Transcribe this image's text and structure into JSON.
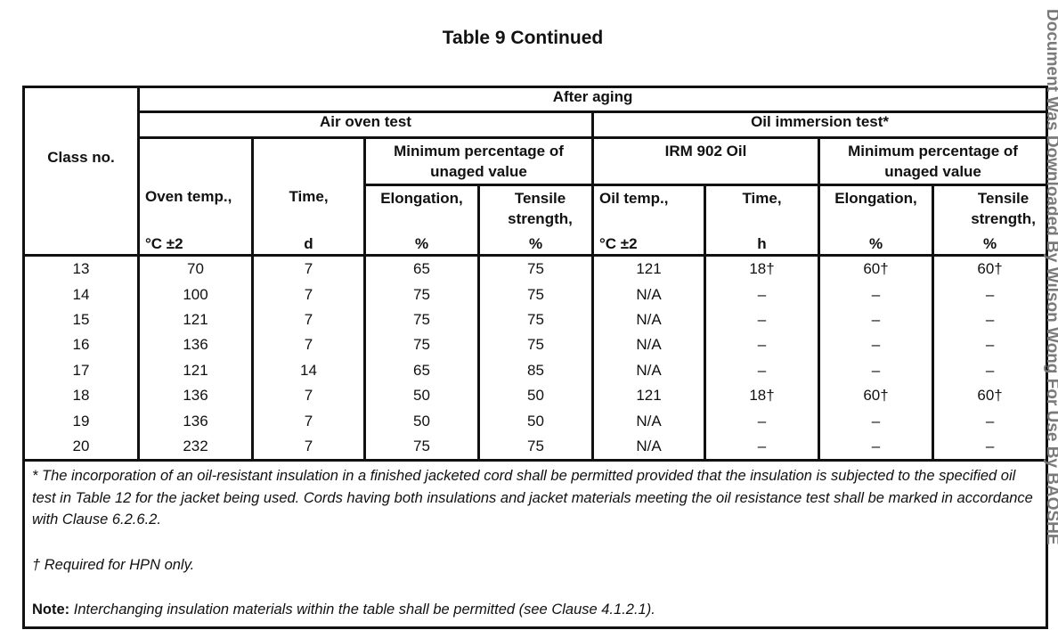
{
  "title": "Table 9 Continued",
  "watermark": "Document Was Downloaded By Wilson Wong  For Use By BAOSHE",
  "header": {
    "class_no": "Class no.",
    "after_aging": "After aging",
    "air_oven_test": "Air oven test",
    "oil_immersion_test": "Oil immersion test*",
    "min_pct": "Minimum percentage of unaged value",
    "irm": "IRM 902 Oil",
    "oven_temp": "Oven temp.,",
    "time": "Time,",
    "elongation": "Elongation,",
    "tensile": "Tensile strength,",
    "oil_temp": "Oil temp.,",
    "unit_temp": "°C ±2",
    "unit_d": "d",
    "unit_pct": "%",
    "unit_h": "h"
  },
  "rows": [
    [
      "13",
      "70",
      "7",
      "65",
      "75",
      "121",
      "18†",
      "60†",
      "60†"
    ],
    [
      "14",
      "100",
      "7",
      "75",
      "75",
      "N/A",
      "–",
      "–",
      "–"
    ],
    [
      "15",
      "121",
      "7",
      "75",
      "75",
      "N/A",
      "–",
      "–",
      "–"
    ],
    [
      "16",
      "136",
      "7",
      "75",
      "75",
      "N/A",
      "–",
      "–",
      "–"
    ],
    [
      "17",
      "121",
      "14",
      "65",
      "85",
      "N/A",
      "–",
      "–",
      "–"
    ],
    [
      "18",
      "136",
      "7",
      "50",
      "50",
      "121",
      "18†",
      "60†",
      "60†"
    ],
    [
      "19",
      "136",
      "7",
      "50",
      "50",
      "N/A",
      "–",
      "–",
      "–"
    ],
    [
      "20",
      "232",
      "7",
      "75",
      "75",
      "N/A",
      "–",
      "–",
      "–"
    ]
  ],
  "notes": {
    "star": "* The incorporation of an oil-resistant insulation in a finished jacketed cord shall be permitted provided that the insulation is subjected to the specified oil test in Table 12 for the jacket being used. Cords having both insulations and jacket materials meeting the oil resistance test shall be marked in accordance with Clause 6.2.6.2.",
    "dagger": "† Required for HPN only.",
    "note_label": "Note:",
    "note_text": "Interchanging insulation materials within the table shall be permitted (see Clause 4.1.2.1)."
  }
}
